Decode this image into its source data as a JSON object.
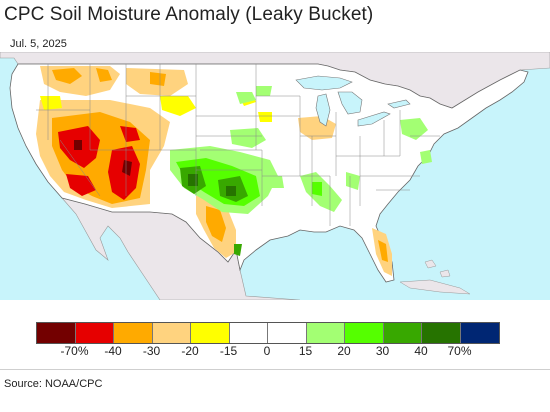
{
  "title": "CPC Soil Moisture Anomaly (Leaky Bucket)",
  "date": "Jul. 5, 2025",
  "source": "Source: NOAA/CPC",
  "colors": {
    "ocean": "#c8f4fb",
    "land_other": "#ebe6ea",
    "land_us": "#ffffff",
    "lakes": "#c8f4fb",
    "borders": "#777777"
  },
  "legend": {
    "swatches": [
      {
        "color": "#730000"
      },
      {
        "color": "#e60000"
      },
      {
        "color": "#ffaa00"
      },
      {
        "color": "#ffd37f"
      },
      {
        "color": "#ffff00"
      },
      {
        "color": "#ffffff"
      },
      {
        "color": "#ffffff"
      },
      {
        "color": "#a3ff73"
      },
      {
        "color": "#55ff00"
      },
      {
        "color": "#38a800"
      },
      {
        "color": "#267300"
      },
      {
        "color": "#002673"
      }
    ],
    "labels": [
      "-70%",
      "-40",
      "-30",
      "-20",
      "-15",
      "0",
      "15",
      "20",
      "30",
      "40",
      "70%"
    ]
  }
}
